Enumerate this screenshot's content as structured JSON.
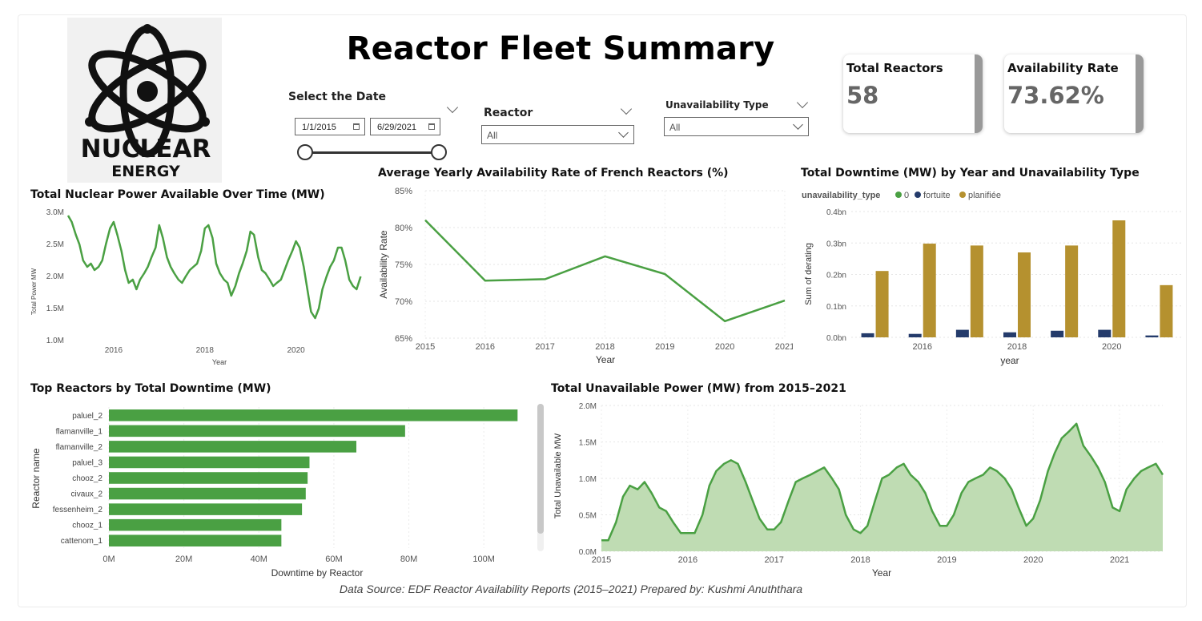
{
  "page_title": "Reactor Fleet Summary",
  "logo": {
    "word1": "NUCLEAR",
    "word2": "ENERGY"
  },
  "filters": {
    "date": {
      "title": "Select the Date",
      "start": "1/1/2015",
      "end": "6/29/2021"
    },
    "reactor": {
      "title": "Reactor",
      "value": "All"
    },
    "unavailability": {
      "title": "Unavailability Type",
      "value": "All"
    }
  },
  "cards": {
    "total_reactors": {
      "label": "Total Reactors",
      "value": "58"
    },
    "availability_rate": {
      "label": "Availability Rate",
      "value": "73.62%"
    }
  },
  "colors": {
    "green": "#4aa043",
    "navy": "#243b6b",
    "gold": "#b5912f",
    "area_fill": "#bfdcb3"
  },
  "footer": "Data Source: EDF Reactor Availability Reports (2015–2021) Prepared by: Kushmi Anuththara",
  "chart_data": [
    {
      "id": "power_available",
      "type": "line",
      "title": "Total Nuclear Power Available Over Time (MW)",
      "xlabel": "Year",
      "ylabel": "Total Power MW",
      "x_ticks": [
        "2016",
        "2018",
        "2020"
      ],
      "y_ticks": [
        "3.0M",
        "2.5M",
        "2.0M",
        "1.5M",
        "1.0M"
      ],
      "xlim": [
        2015.0,
        2021.5
      ],
      "ylim": [
        1000000,
        3000000
      ],
      "grid": false,
      "series": [
        {
          "x": [
            2015.0,
            2015.08,
            2015.17,
            2015.25,
            2015.33,
            2015.42,
            2015.5,
            2015.58,
            2015.67,
            2015.75,
            2015.83,
            2015.92,
            2016.0,
            2016.08,
            2016.17,
            2016.25,
            2016.33,
            2016.42,
            2016.5,
            2016.58,
            2016.67,
            2016.75,
            2016.83,
            2016.92,
            2017.0,
            2017.08,
            2017.17,
            2017.25,
            2017.33,
            2017.42,
            2017.5,
            2017.58,
            2017.67,
            2017.75,
            2017.83,
            2017.92,
            2018.0,
            2018.08,
            2018.17,
            2018.25,
            2018.33,
            2018.42,
            2018.5,
            2018.58,
            2018.67,
            2018.75,
            2018.83,
            2018.92,
            2019.0,
            2019.08,
            2019.17,
            2019.25,
            2019.33,
            2019.42,
            2019.5,
            2019.58,
            2019.67,
            2019.75,
            2019.83,
            2019.92,
            2020.0,
            2020.08,
            2020.17,
            2020.25,
            2020.33,
            2020.42,
            2020.5,
            2020.58,
            2020.67,
            2020.75,
            2020.83,
            2020.92,
            2021.0,
            2021.08,
            2021.17,
            2021.25,
            2021.33,
            2021.42
          ],
          "y": [
            2950000,
            2850000,
            2650000,
            2500000,
            2250000,
            2150000,
            2200000,
            2100000,
            2150000,
            2250000,
            2500000,
            2750000,
            2850000,
            2650000,
            2400000,
            2100000,
            1900000,
            1950000,
            1800000,
            1950000,
            2050000,
            2150000,
            2300000,
            2450000,
            2800000,
            2600000,
            2300000,
            2150000,
            2050000,
            1950000,
            1900000,
            2000000,
            2100000,
            2150000,
            2200000,
            2400000,
            2750000,
            2800000,
            2600000,
            2200000,
            2050000,
            1950000,
            1900000,
            1700000,
            1850000,
            2050000,
            2200000,
            2400000,
            2700000,
            2650000,
            2300000,
            2100000,
            2050000,
            1950000,
            1850000,
            1900000,
            1950000,
            2100000,
            2250000,
            2400000,
            2550000,
            2450000,
            2150000,
            1800000,
            1450000,
            1350000,
            1500000,
            1800000,
            2000000,
            2150000,
            2250000,
            2450000,
            2450000,
            2250000,
            1950000,
            1850000,
            1800000,
            2000000
          ]
        }
      ]
    },
    {
      "id": "availability_rate",
      "type": "line",
      "title": "Average Yearly Availability Rate of French Reactors (%)",
      "xlabel": "Year",
      "ylabel": "Availability Rate",
      "categories": [
        "2015",
        "2016",
        "2017",
        "2018",
        "2019",
        "2020",
        "2021"
      ],
      "y_ticks": [
        "85%",
        "80%",
        "75%",
        "70%",
        "65%"
      ],
      "ylim": [
        65,
        85
      ],
      "grid": true,
      "series": [
        {
          "values": [
            81.0,
            72.8,
            73.0,
            76.1,
            73.7,
            67.3,
            70.1
          ]
        }
      ]
    },
    {
      "id": "downtime_by_year_type",
      "type": "bar",
      "title": "Total Downtime (MW) by Year and Unavailability Type",
      "legend_title": "unavailability_type",
      "legend_position": "top-left",
      "xlabel": "year",
      "ylabel": "Sum of derating",
      "x_ticks": [
        "2016",
        "2018",
        "2020"
      ],
      "y_ticks": [
        "0.4bn",
        "0.3bn",
        "0.2bn",
        "0.1bn",
        "0.0bn"
      ],
      "ylim": [
        0,
        0.4
      ],
      "categories": [
        "2015",
        "2016",
        "2017",
        "2018",
        "2019",
        "2020",
        "2021"
      ],
      "series": [
        {
          "name": "0",
          "values": [
            0,
            0,
            0,
            0,
            0,
            0,
            0
          ]
        },
        {
          "name": "fortuite",
          "values": [
            0.013,
            0.011,
            0.024,
            0.016,
            0.021,
            0.024,
            0.006
          ]
        },
        {
          "name": "planifiée",
          "values": [
            0.211,
            0.298,
            0.292,
            0.27,
            0.292,
            0.372,
            0.166
          ]
        }
      ]
    },
    {
      "id": "top_reactors",
      "type": "bar",
      "orientation": "horizontal",
      "title": "Top Reactors by Total Downtime (MW)",
      "xlabel": "Downtime by Reactor",
      "ylabel": "Reactor name",
      "x_ticks": [
        "0M",
        "20M",
        "40M",
        "60M",
        "80M",
        "100M"
      ],
      "xlim": [
        0,
        110
      ],
      "categories": [
        "paluel_2",
        "flamanville_1",
        "flamanville_2",
        "paluel_3",
        "chooz_2",
        "civaux_2",
        "fessenheim_2",
        "chooz_1",
        "cattenom_1"
      ],
      "values": [
        109,
        79,
        66,
        53.5,
        53,
        52.5,
        51.5,
        46,
        46
      ]
    },
    {
      "id": "unavailable_power",
      "type": "area",
      "title": "Total Unavailable Power (MW) from 2015–2021",
      "xlabel": "Year",
      "ylabel": "Total Unavailable MW",
      "x_ticks": [
        "2015",
        "2016",
        "2017",
        "2018",
        "2019",
        "2020",
        "2021"
      ],
      "y_ticks": [
        "2.0M",
        "1.5M",
        "1.0M",
        "0.5M",
        "0.0M"
      ],
      "xlim": [
        2015.0,
        2021.5
      ],
      "ylim": [
        0,
        2000000
      ],
      "grid": true,
      "series": [
        {
          "x": [
            2015.0,
            2015.08,
            2015.17,
            2015.25,
            2015.33,
            2015.42,
            2015.5,
            2015.58,
            2015.67,
            2015.75,
            2015.83,
            2015.92,
            2016.0,
            2016.08,
            2016.17,
            2016.25,
            2016.33,
            2016.42,
            2016.5,
            2016.58,
            2016.67,
            2016.75,
            2016.83,
            2016.92,
            2017.0,
            2017.08,
            2017.17,
            2017.25,
            2017.33,
            2017.42,
            2017.5,
            2017.58,
            2017.67,
            2017.75,
            2017.83,
            2017.92,
            2018.0,
            2018.08,
            2018.17,
            2018.25,
            2018.33,
            2018.42,
            2018.5,
            2018.58,
            2018.67,
            2018.75,
            2018.83,
            2018.92,
            2019.0,
            2019.08,
            2019.17,
            2019.25,
            2019.33,
            2019.42,
            2019.5,
            2019.58,
            2019.67,
            2019.75,
            2019.83,
            2019.92,
            2020.0,
            2020.08,
            2020.17,
            2020.25,
            2020.33,
            2020.42,
            2020.5,
            2020.58,
            2020.67,
            2020.75,
            2020.83,
            2020.92,
            2021.0,
            2021.08,
            2021.17,
            2021.25,
            2021.33,
            2021.42,
            2021.5
          ],
          "y": [
            150000,
            150000,
            400000,
            750000,
            900000,
            850000,
            950000,
            800000,
            600000,
            550000,
            400000,
            250000,
            250000,
            250000,
            500000,
            900000,
            1100000,
            1200000,
            1250000,
            1200000,
            950000,
            700000,
            450000,
            300000,
            300000,
            400000,
            700000,
            950000,
            1000000,
            1050000,
            1100000,
            1150000,
            1000000,
            850000,
            500000,
            300000,
            250000,
            350000,
            700000,
            1000000,
            1050000,
            1150000,
            1200000,
            1050000,
            950000,
            800000,
            550000,
            350000,
            350000,
            500000,
            800000,
            950000,
            1000000,
            1050000,
            1150000,
            1100000,
            1000000,
            850000,
            600000,
            350000,
            450000,
            700000,
            1100000,
            1350000,
            1550000,
            1650000,
            1750000,
            1450000,
            1300000,
            1150000,
            950000,
            600000,
            550000,
            850000,
            1000000,
            1100000,
            1150000,
            1200000,
            1050000
          ]
        }
      ]
    }
  ]
}
